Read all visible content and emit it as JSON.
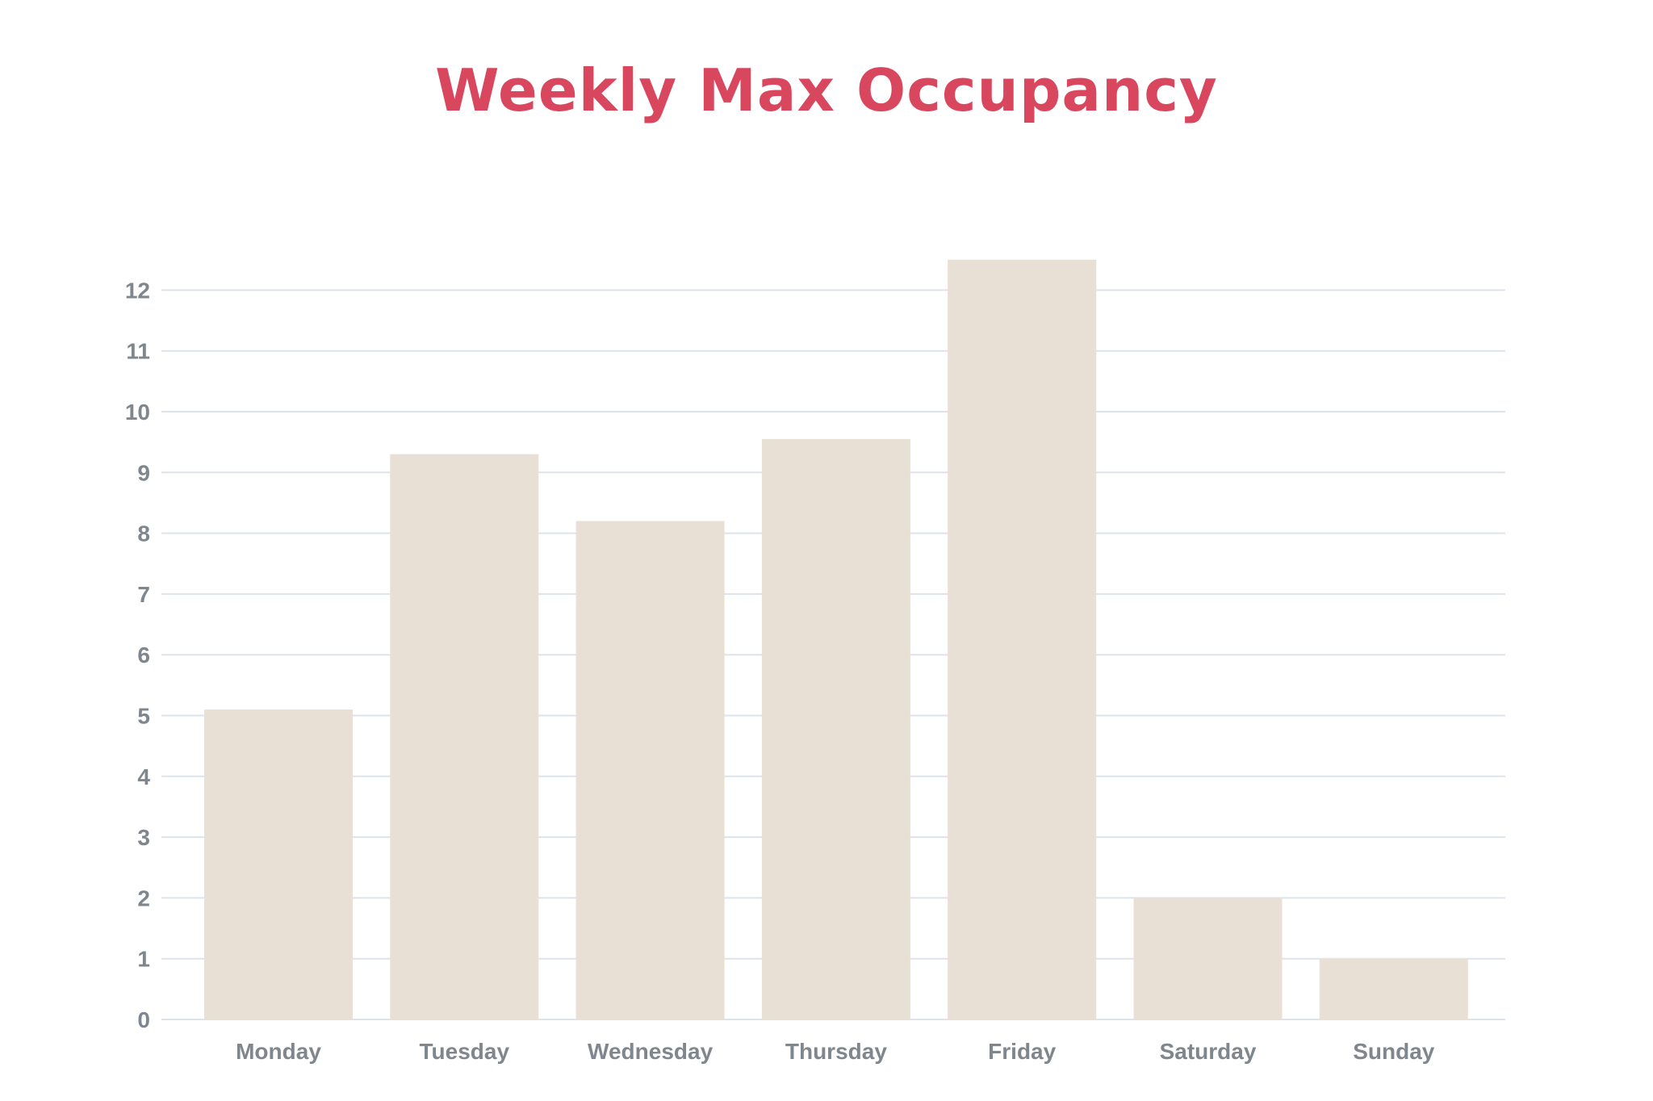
{
  "colors": {
    "title": "#d9475f",
    "bar": "#e8dfd5",
    "grid": "#dde3ea",
    "label": "#7f868d"
  },
  "chart_data": {
    "type": "bar",
    "title": "Weekly Max Occupancy",
    "xlabel": "",
    "ylabel": "",
    "categories": [
      "Monday",
      "Tuesday",
      "Wednesday",
      "Thursday",
      "Friday",
      "Saturday",
      "Sunday"
    ],
    "values": [
      5.1,
      9.3,
      8.2,
      9.55,
      12.5,
      2.0,
      1.0
    ],
    "yticks": [
      "0",
      "1",
      "2",
      "3",
      "4",
      "5",
      "6",
      "7",
      "8",
      "9",
      "10",
      "11",
      "12"
    ],
    "ylim": [
      0,
      12
    ],
    "grid": true,
    "legend": "none"
  }
}
